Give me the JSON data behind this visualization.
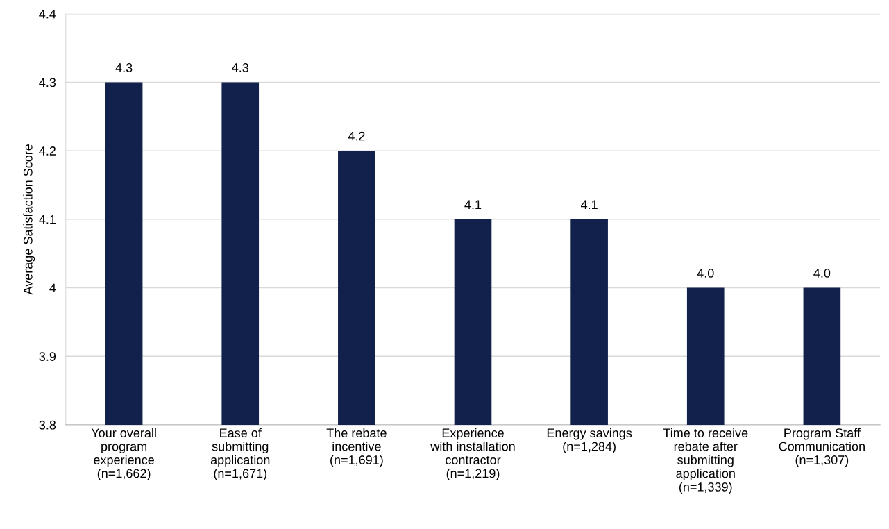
{
  "chart_data": {
    "type": "bar",
    "ylabel": "Average Satisfaction Score",
    "categories": [
      "Your overall\nprogram\nexperience\n(n=1,662)",
      "Ease of\nsubmitting\napplication\n(n=1,671)",
      "The rebate\nincentive\n(n=1,691)",
      "Experience\nwith installation\ncontractor\n(n=1,219)",
      "Energy savings\n(n=1,284)",
      "Time to receive\nrebate after\nsubmitting\napplication\n(n=1,339)",
      "Program Staff\nCommunication\n(n=1,307)"
    ],
    "values": [
      4.3,
      4.3,
      4.2,
      4.1,
      4.1,
      4.0,
      4.0
    ],
    "value_labels": [
      "4.3",
      "4.3",
      "4.2",
      "4.1",
      "4.1",
      "4.0",
      "4.0"
    ],
    "color": "#12214b",
    "ylim": [
      3.8,
      4.4
    ],
    "yticks": [
      3.8,
      3.9,
      {
        "value": 4.0,
        "label": "4"
      },
      4.1,
      4.2,
      4.3,
      4.4
    ],
    "grid": "y",
    "legend": false
  }
}
